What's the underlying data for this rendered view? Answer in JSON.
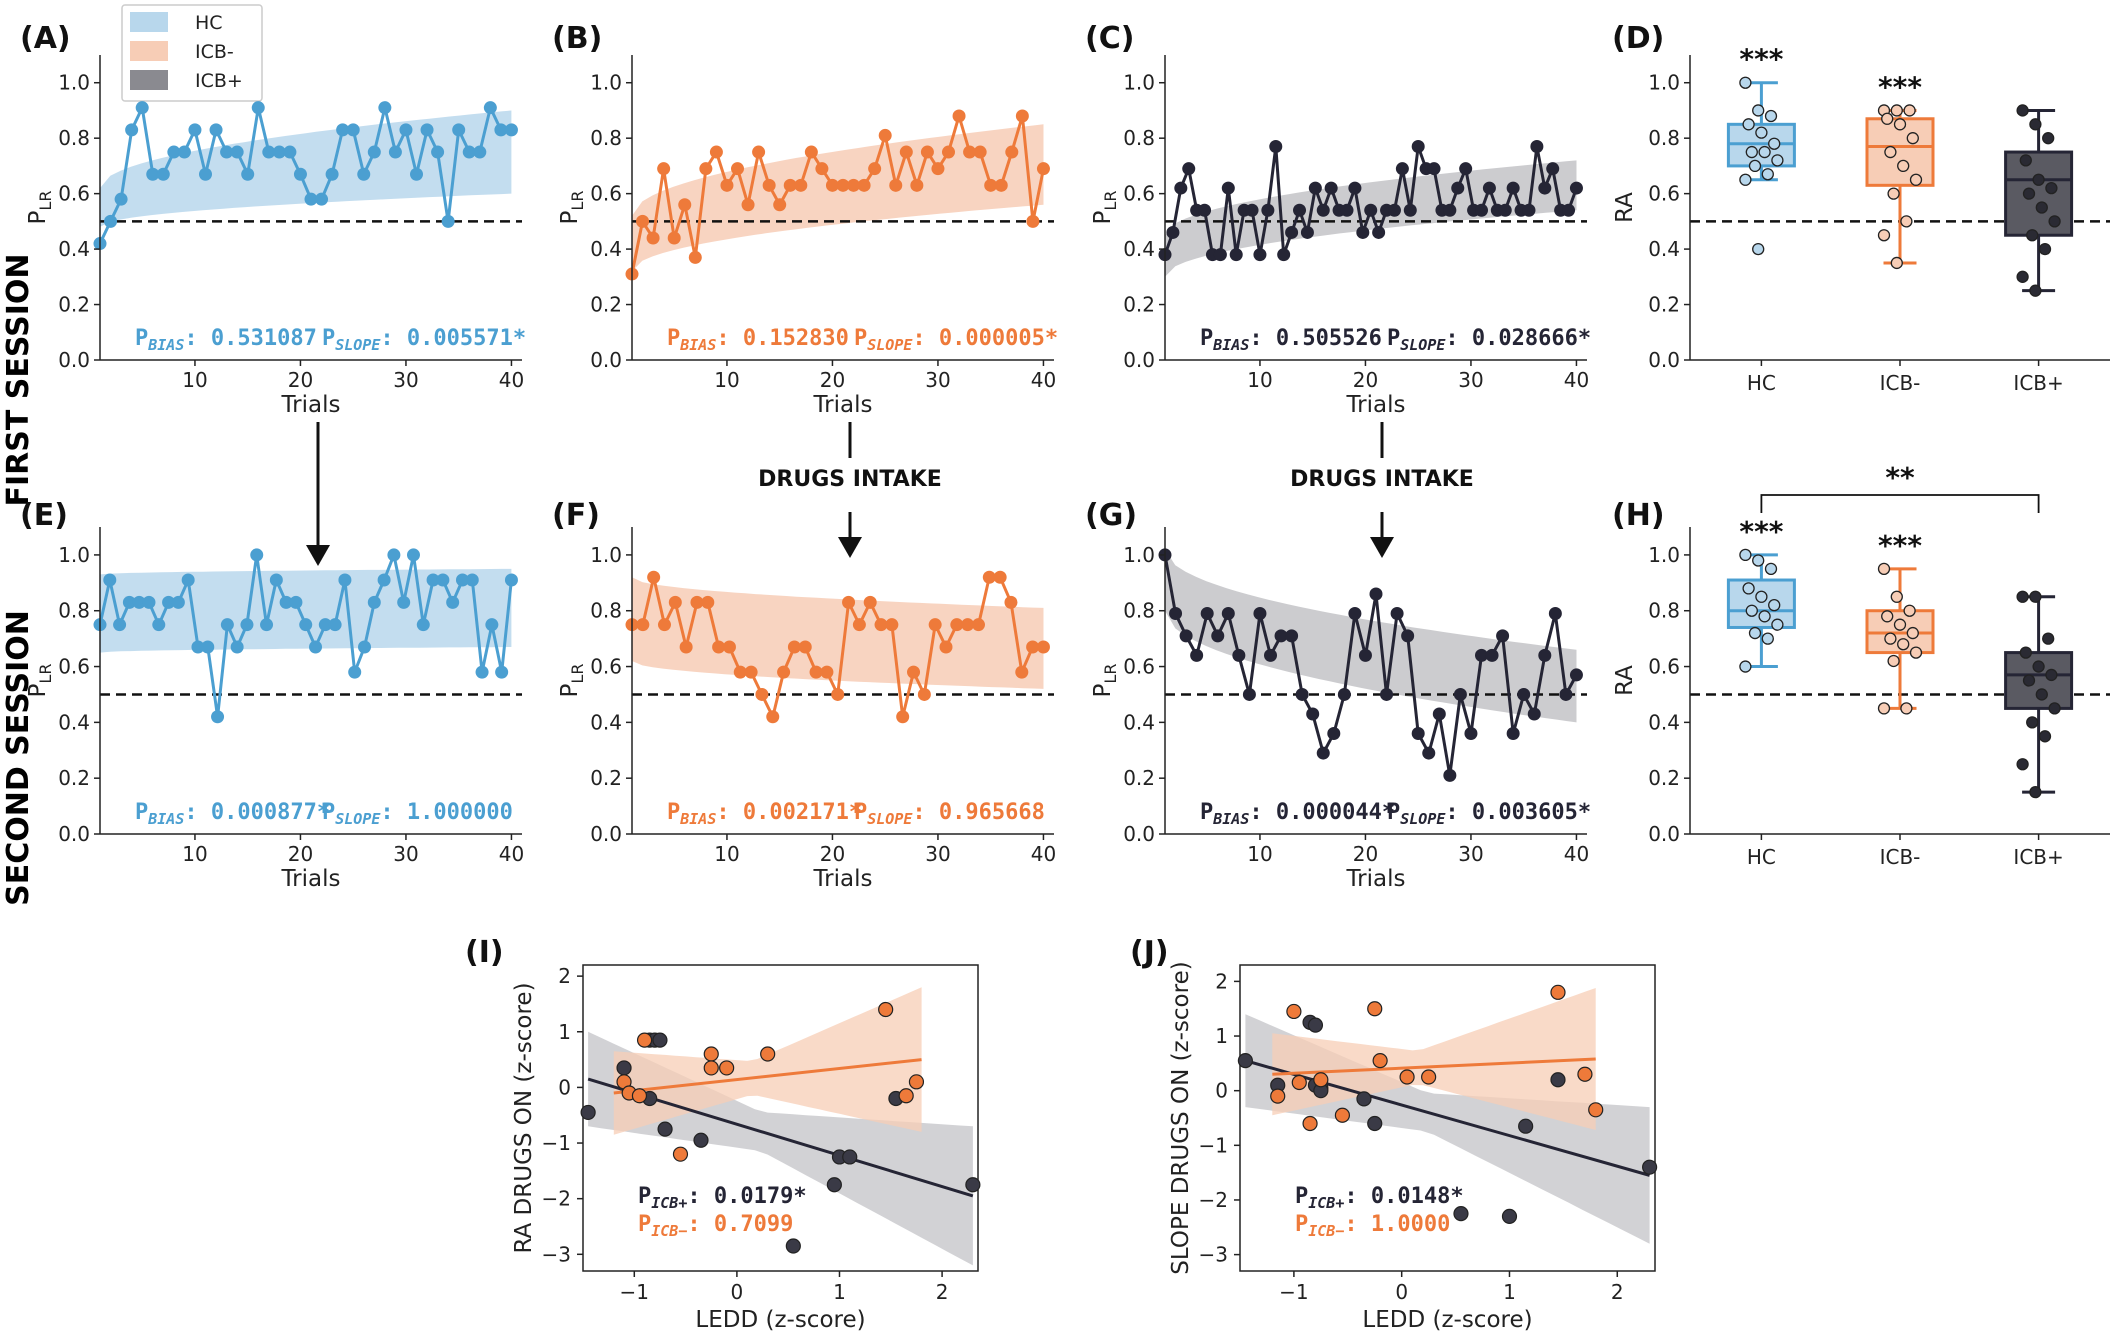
{
  "colors": {
    "HC": "#4b9fd1",
    "ICBm": "#ee7a3a",
    "ICBp": "#252535",
    "HC_fill": "#b8d7ec",
    "ICBm_fill": "#f7cdb6",
    "ICBp_fill": "#c3c3c7",
    "ICBp_box": "#5a5a62"
  },
  "legend": [
    "HC",
    "ICB-",
    "ICB+"
  ],
  "session_labels": {
    "first": "FIRST SESSION",
    "second": "SECOND SESSION"
  },
  "drugs_intake": "DRUGS INTAKE",
  "labels": {
    "trials": "Trials",
    "plr_main": "P",
    "plr_sub": "LR",
    "ra": "RA",
    "p_main": "P",
    "bias_sub": "BIAS",
    "slope_sub": "SLOPE",
    "ra_drugs": "RA DRUGS ON (z-score)",
    "slope_drugs": "SLOPE DRUGS ON (z-score)",
    "ledd": "LEDD (z-score)",
    "icbp_sub": "ICB+",
    "icbm_sub": "ICB−"
  },
  "chart_data": [
    {
      "panel": "(A)",
      "type": "line",
      "group": "HC",
      "xlabel": "Trials",
      "ylim": [
        0,
        1.1
      ],
      "xlim": [
        1,
        41
      ],
      "ref_line": 0.5,
      "values": [
        0.42,
        0.5,
        0.58,
        0.83,
        0.91,
        0.67,
        0.67,
        0.75,
        0.75,
        0.83,
        0.67,
        0.83,
        0.75,
        0.75,
        0.67,
        0.91,
        0.75,
        0.75,
        0.75,
        0.67,
        0.58,
        0.58,
        0.67,
        0.83,
        0.83,
        0.67,
        0.75,
        0.91,
        0.75,
        0.83,
        0.67,
        0.83,
        0.75,
        0.5,
        0.83,
        0.75,
        0.75,
        0.91,
        0.83,
        0.83
      ],
      "band_lower": [
        0.48,
        0.6
      ],
      "band_upper": [
        0.62,
        0.9
      ],
      "p_bias": ": 0.531087",
      "p_slope": ": 0.005571*"
    },
    {
      "panel": "(B)",
      "type": "line",
      "group": "ICBm",
      "xlabel": "Trials",
      "ylim": [
        0,
        1.1
      ],
      "xlim": [
        1,
        41
      ],
      "ref_line": 0.5,
      "values": [
        0.31,
        0.5,
        0.44,
        0.69,
        0.44,
        0.56,
        0.37,
        0.69,
        0.75,
        0.63,
        0.69,
        0.56,
        0.75,
        0.63,
        0.56,
        0.63,
        0.63,
        0.75,
        0.69,
        0.63,
        0.63,
        0.63,
        0.63,
        0.69,
        0.81,
        0.63,
        0.75,
        0.63,
        0.75,
        0.69,
        0.75,
        0.88,
        0.75,
        0.75,
        0.63,
        0.63,
        0.75,
        0.88,
        0.5,
        0.69
      ],
      "band_lower": [
        0.32,
        0.56
      ],
      "band_upper": [
        0.52,
        0.85
      ],
      "p_bias": ": 0.152830",
      "p_slope": ": 0.000005*"
    },
    {
      "panel": "(C)",
      "type": "line",
      "group": "ICBp",
      "xlabel": "Trials",
      "ylim": [
        0,
        1.1
      ],
      "xlim": [
        1,
        41
      ],
      "ref_line": 0.5,
      "values": [
        0.38,
        0.46,
        0.62,
        0.69,
        0.54,
        0.54,
        0.38,
        0.38,
        0.62,
        0.38,
        0.54,
        0.54,
        0.38,
        0.54,
        0.77,
        0.38,
        0.46,
        0.54,
        0.46,
        0.62,
        0.54,
        0.62,
        0.54,
        0.54,
        0.62,
        0.46,
        0.54,
        0.46,
        0.54,
        0.54,
        0.69,
        0.54,
        0.77,
        0.69,
        0.69,
        0.54,
        0.54,
        0.62,
        0.69,
        0.54,
        0.54,
        0.62,
        0.54,
        0.54,
        0.62,
        0.54,
        0.54,
        0.77,
        0.62,
        0.69,
        0.54,
        0.54,
        0.62
      ],
      "band_lower": [
        0.3,
        0.54
      ],
      "band_upper": [
        0.45,
        0.72
      ],
      "p_bias": ": 0.505526",
      "p_slope": ": 0.028666*"
    },
    {
      "panel": "(D)",
      "type": "box",
      "ylabel": "RA",
      "ylim": [
        0,
        1.1
      ],
      "ref_line": 0.5,
      "categories": [
        "HC",
        "ICB-",
        "ICB+"
      ],
      "boxes": [
        {
          "q1": 0.7,
          "median": 0.78,
          "q3": 0.85,
          "whislo": 0.65,
          "whishi": 1.0,
          "points": [
            1.0,
            0.9,
            0.88,
            0.85,
            0.82,
            0.78,
            0.75,
            0.75,
            0.72,
            0.7,
            0.67,
            0.65,
            0.4
          ],
          "stars": "***"
        },
        {
          "q1": 0.63,
          "median": 0.77,
          "q3": 0.87,
          "whislo": 0.35,
          "whishi": 0.9,
          "points": [
            0.9,
            0.9,
            0.9,
            0.87,
            0.85,
            0.8,
            0.75,
            0.7,
            0.65,
            0.6,
            0.5,
            0.45,
            0.35
          ],
          "stars": "***"
        },
        {
          "q1": 0.45,
          "median": 0.65,
          "q3": 0.75,
          "whislo": 0.25,
          "whishi": 0.9,
          "points": [
            0.9,
            0.85,
            0.8,
            0.72,
            0.65,
            0.62,
            0.6,
            0.55,
            0.5,
            0.45,
            0.4,
            0.3,
            0.25
          ],
          "stars": ""
        }
      ]
    },
    {
      "panel": "(E)",
      "type": "line",
      "group": "HC",
      "xlabel": "Trials",
      "ylim": [
        0,
        1.1
      ],
      "xlim": [
        1,
        41
      ],
      "ref_line": 0.5,
      "values": [
        0.75,
        0.91,
        0.75,
        0.83,
        0.83,
        0.83,
        0.75,
        0.83,
        0.83,
        0.91,
        0.67,
        0.67,
        0.42,
        0.75,
        0.67,
        0.75,
        1.0,
        0.75,
        0.91,
        0.83,
        0.83,
        0.75,
        0.67,
        0.75,
        0.75,
        0.91,
        0.58,
        0.67,
        0.83,
        0.91,
        1.0,
        0.83,
        1.0,
        0.75,
        0.91,
        0.91,
        0.83,
        0.91,
        0.91,
        0.58,
        0.75,
        0.58,
        0.91
      ],
      "band_lower": [
        0.65,
        0.67
      ],
      "band_upper": [
        0.93,
        0.95
      ],
      "p_bias": ": 0.000877*",
      "p_slope": ": 1.000000"
    },
    {
      "panel": "(F)",
      "type": "line",
      "group": "ICBm",
      "xlabel": "Trials",
      "ylim": [
        0,
        1.1
      ],
      "xlim": [
        1,
        41
      ],
      "ref_line": 0.5,
      "values": [
        0.75,
        0.75,
        0.92,
        0.75,
        0.83,
        0.67,
        0.83,
        0.83,
        0.67,
        0.67,
        0.58,
        0.58,
        0.5,
        0.42,
        0.58,
        0.67,
        0.67,
        0.58,
        0.58,
        0.5,
        0.83,
        0.75,
        0.83,
        0.75,
        0.75,
        0.42,
        0.58,
        0.5,
        0.75,
        0.67,
        0.75,
        0.75,
        0.75,
        0.92,
        0.92,
        0.83,
        0.58,
        0.67,
        0.67
      ],
      "band_lower": [
        0.62,
        0.52
      ],
      "band_upper": [
        0.92,
        0.81
      ],
      "p_bias": ": 0.002171*",
      "p_slope": ": 0.965668"
    },
    {
      "panel": "(G)",
      "type": "line",
      "group": "ICBp",
      "xlabel": "Trials",
      "ylim": [
        0,
        1.1
      ],
      "xlim": [
        1,
        41
      ],
      "ref_line": 0.5,
      "values": [
        1.0,
        0.79,
        0.71,
        0.64,
        0.79,
        0.71,
        0.79,
        0.64,
        0.5,
        0.79,
        0.64,
        0.71,
        0.71,
        0.5,
        0.43,
        0.29,
        0.36,
        0.5,
        0.79,
        0.64,
        0.86,
        0.5,
        0.79,
        0.71,
        0.36,
        0.29,
        0.43,
        0.21,
        0.5,
        0.36,
        0.64,
        0.64,
        0.71,
        0.36,
        0.5,
        0.43,
        0.64,
        0.79,
        0.5,
        0.57
      ],
      "band_lower": [
        0.8,
        0.4
      ],
      "band_upper": [
        1.02,
        0.66
      ],
      "p_bias": ": 0.000044*",
      "p_slope": ": 0.003605*"
    },
    {
      "panel": "(H)",
      "type": "box",
      "ylabel": "RA",
      "ylim": [
        0,
        1.1
      ],
      "ref_line": 0.5,
      "categories": [
        "HC",
        "ICB-",
        "ICB+"
      ],
      "bracket": "**",
      "boxes": [
        {
          "q1": 0.74,
          "median": 0.8,
          "q3": 0.91,
          "whislo": 0.6,
          "whishi": 1.0,
          "points": [
            1.0,
            0.98,
            0.95,
            0.88,
            0.85,
            0.82,
            0.8,
            0.78,
            0.75,
            0.72,
            0.7,
            0.6
          ],
          "stars": "***"
        },
        {
          "q1": 0.65,
          "median": 0.72,
          "q3": 0.8,
          "whislo": 0.45,
          "whishi": 0.95,
          "points": [
            0.95,
            0.85,
            0.8,
            0.78,
            0.75,
            0.72,
            0.7,
            0.68,
            0.65,
            0.62,
            0.45,
            0.45
          ],
          "stars": "***"
        },
        {
          "q1": 0.45,
          "median": 0.57,
          "q3": 0.65,
          "whislo": 0.15,
          "whishi": 0.85,
          "points": [
            0.85,
            0.85,
            0.7,
            0.65,
            0.6,
            0.57,
            0.55,
            0.5,
            0.45,
            0.4,
            0.35,
            0.25,
            0.15
          ],
          "stars": ""
        }
      ]
    },
    {
      "panel": "(I)",
      "type": "scatter",
      "xlabel": "LEDD (z-score)",
      "ylabel": "RA DRUGS ON (z-score)",
      "xlim": [
        -1.5,
        2.35
      ],
      "ylim": [
        -3.3,
        2.2
      ],
      "xticks": [
        -1,
        0,
        1,
        2
      ],
      "yticks": [
        -3,
        -2,
        -1,
        0,
        1,
        2
      ],
      "series": [
        {
          "name": "ICB+",
          "x": [
            -1.45,
            -1.1,
            -0.85,
            -0.8,
            -0.75,
            -0.85,
            -0.7,
            -0.35,
            0.55,
            0.95,
            1.0,
            1.1,
            1.55,
            2.3
          ],
          "y": [
            -0.45,
            0.35,
            0.85,
            0.85,
            0.85,
            -0.2,
            -0.75,
            -0.95,
            -2.85,
            -1.75,
            -1.25,
            -1.25,
            -0.2,
            -1.75
          ],
          "fit": {
            "x": [
              -1.45,
              2.3
            ],
            "y": [
              0.15,
              -1.95
            ]
          }
        },
        {
          "name": "ICB-",
          "x": [
            -1.1,
            -1.05,
            -0.95,
            -0.9,
            -0.55,
            -0.25,
            -0.25,
            -0.1,
            0.3,
            1.45,
            1.65,
            1.75
          ],
          "y": [
            0.1,
            -0.1,
            -0.15,
            0.85,
            -1.2,
            0.6,
            0.35,
            0.35,
            0.6,
            1.4,
            -0.15,
            0.1
          ],
          "fit": {
            "x": [
              -1.2,
              1.8
            ],
            "y": [
              -0.1,
              0.5
            ]
          }
        }
      ],
      "p_icbp": ": 0.0179*",
      "p_icbm": ": 0.7099"
    },
    {
      "panel": "(J)",
      "type": "scatter",
      "xlabel": "LEDD (z-score)",
      "ylabel": "SLOPE DRUGS ON (z-score)",
      "xlim": [
        -1.5,
        2.35
      ],
      "ylim": [
        -3.3,
        2.3
      ],
      "xticks": [
        -1,
        0,
        1,
        2
      ],
      "yticks": [
        -3,
        -2,
        -1,
        0,
        1,
        2
      ],
      "series": [
        {
          "name": "ICB+",
          "x": [
            -1.45,
            -1.15,
            -0.85,
            -0.8,
            -0.75,
            -0.8,
            -0.75,
            -0.35,
            -0.25,
            0.55,
            1.0,
            1.15,
            1.45,
            2.3
          ],
          "y": [
            0.55,
            0.1,
            1.25,
            1.2,
            0.05,
            0.1,
            0.0,
            -0.15,
            -0.6,
            -2.25,
            -2.3,
            -0.65,
            0.2,
            -1.4
          ],
          "fit": {
            "x": [
              -1.45,
              2.3
            ],
            "y": [
              0.55,
              -1.55
            ]
          }
        },
        {
          "name": "ICB-",
          "x": [
            -1.15,
            -1.0,
            -0.95,
            -0.85,
            -0.75,
            -0.55,
            -0.25,
            -0.2,
            0.05,
            0.25,
            1.45,
            1.7,
            1.8
          ],
          "y": [
            -0.1,
            1.45,
            0.15,
            -0.6,
            0.2,
            -0.45,
            1.5,
            0.55,
            0.25,
            0.25,
            1.8,
            0.3,
            -0.35
          ],
          "fit": {
            "x": [
              -1.2,
              1.8
            ],
            "y": [
              0.3,
              0.58
            ]
          }
        }
      ],
      "p_icbp": ": 0.0148*",
      "p_icbm": ": 1.0000"
    }
  ]
}
